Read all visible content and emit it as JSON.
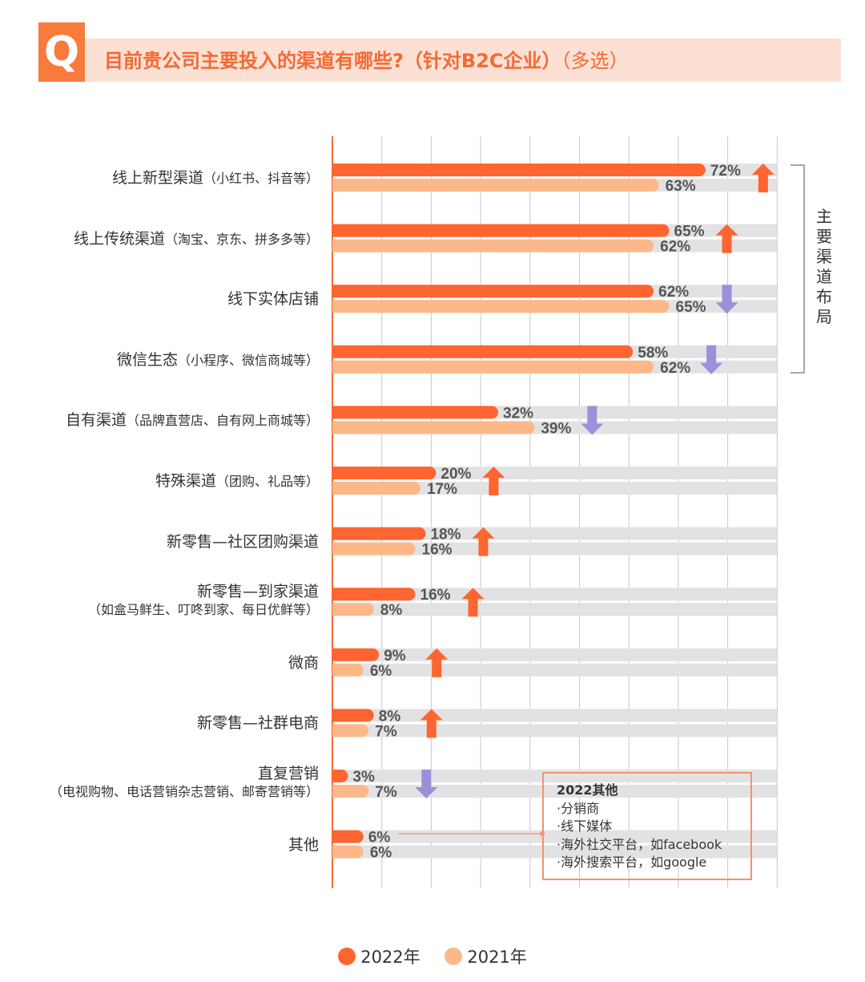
{
  "header": {
    "q_icon": "Q",
    "title": "目前贵公司主要投入的渠道有哪些?（针对B2C企业）",
    "title_suffix": "（多选）"
  },
  "chart_data": {
    "type": "bar",
    "orientation": "horizontal",
    "categories": [
      {
        "main": "线上新型渠道",
        "sub": "（小红书、抖音等）"
      },
      {
        "main": "线上传统渠道",
        "sub": "（淘宝、京东、拼多多等）"
      },
      {
        "main": "线下实体店铺",
        "sub": ""
      },
      {
        "main": "微信生态",
        "sub": "（小程序、微信商城等）"
      },
      {
        "main": "自有渠道",
        "sub": "（品牌直营店、自有网上商城等）"
      },
      {
        "main": "特殊渠道",
        "sub": "（团购、礼品等）"
      },
      {
        "main": "新零售—社区团购渠道",
        "sub": ""
      },
      {
        "main": "新零售—到家渠道",
        "sub": "（如盒马鲜生、叮咚到家、每日优鲜等）",
        "two_line": true
      },
      {
        "main": "微商",
        "sub": ""
      },
      {
        "main": "新零售—社群电商",
        "sub": ""
      },
      {
        "main": "直复营销",
        "sub": "（电视购物、电话营销杂志营销、邮寄营销等）",
        "two_line": true
      },
      {
        "main": "其他",
        "sub": ""
      }
    ],
    "series": [
      {
        "name": "2022年",
        "color": "#fe6530",
        "values": [
          72,
          65,
          62,
          58,
          32,
          20,
          18,
          16,
          9,
          8,
          3,
          6
        ]
      },
      {
        "name": "2021年",
        "color": "#fdb88a",
        "values": [
          63,
          62,
          65,
          62,
          39,
          17,
          16,
          8,
          6,
          7,
          7,
          6
        ]
      }
    ],
    "value_suffix": "%",
    "trend": [
      "up",
      "up",
      "down",
      "down",
      "down",
      "up",
      "up",
      "up",
      "up",
      "up",
      "down",
      null
    ],
    "trend_colors": {
      "up": "#fe6530",
      "down": "#9d8fd8"
    },
    "grid": true,
    "legend_position": "bottom",
    "bracket_label": "主要渠道布局",
    "callout": {
      "title": "2022其他",
      "items": [
        "·分销商",
        "·线下媒体",
        "·海外社交平台，如facebook",
        "·海外搜索平台，如google"
      ]
    }
  }
}
